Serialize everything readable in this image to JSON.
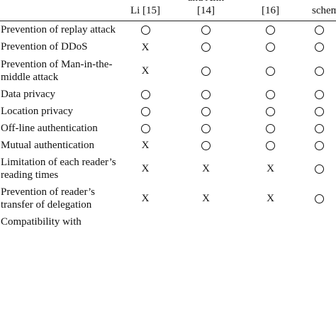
{
  "table": {
    "headers": [
      {
        "lines": [
          ""
        ]
      },
      {
        "lines": [
          "Li [15]"
        ]
      },
      {
        "lines": [
          "and Alin",
          "[14]"
        ]
      },
      {
        "lines": [
          "[16]"
        ]
      },
      {
        "lines": [
          "scheme"
        ]
      }
    ],
    "rows": [
      {
        "label": "Prevention of replay attack",
        "marks": [
          "O",
          "O",
          "O",
          "O"
        ]
      },
      {
        "label": "Prevention of DDoS",
        "marks": [
          "X",
          "O",
          "O",
          "O"
        ]
      },
      {
        "label": "Prevention of Man-in-the-middle attack",
        "marks": [
          "X",
          "O",
          "O",
          "O"
        ]
      },
      {
        "label": "Data privacy",
        "marks": [
          "O",
          "O",
          "O",
          "O"
        ]
      },
      {
        "label": "Location privacy",
        "marks": [
          "O",
          "O",
          "O",
          "O"
        ]
      },
      {
        "label": "Off-line authentication",
        "marks": [
          "O",
          "O",
          "O",
          "O"
        ]
      },
      {
        "label": "Mutual authentication",
        "marks": [
          "X",
          "O",
          "O",
          "O"
        ]
      },
      {
        "label": "Limitation of each reader’s reading times",
        "marks": [
          "X",
          "X",
          "X",
          "O"
        ]
      },
      {
        "label": "Prevention of reader’s transfer of delegation",
        "marks": [
          "X",
          "X",
          "X",
          "O"
        ]
      },
      {
        "label": "Compatibility with",
        "marks": [
          "",
          "",
          "",
          ""
        ]
      }
    ],
    "mark_symbols": {
      "X": "X"
    }
  }
}
